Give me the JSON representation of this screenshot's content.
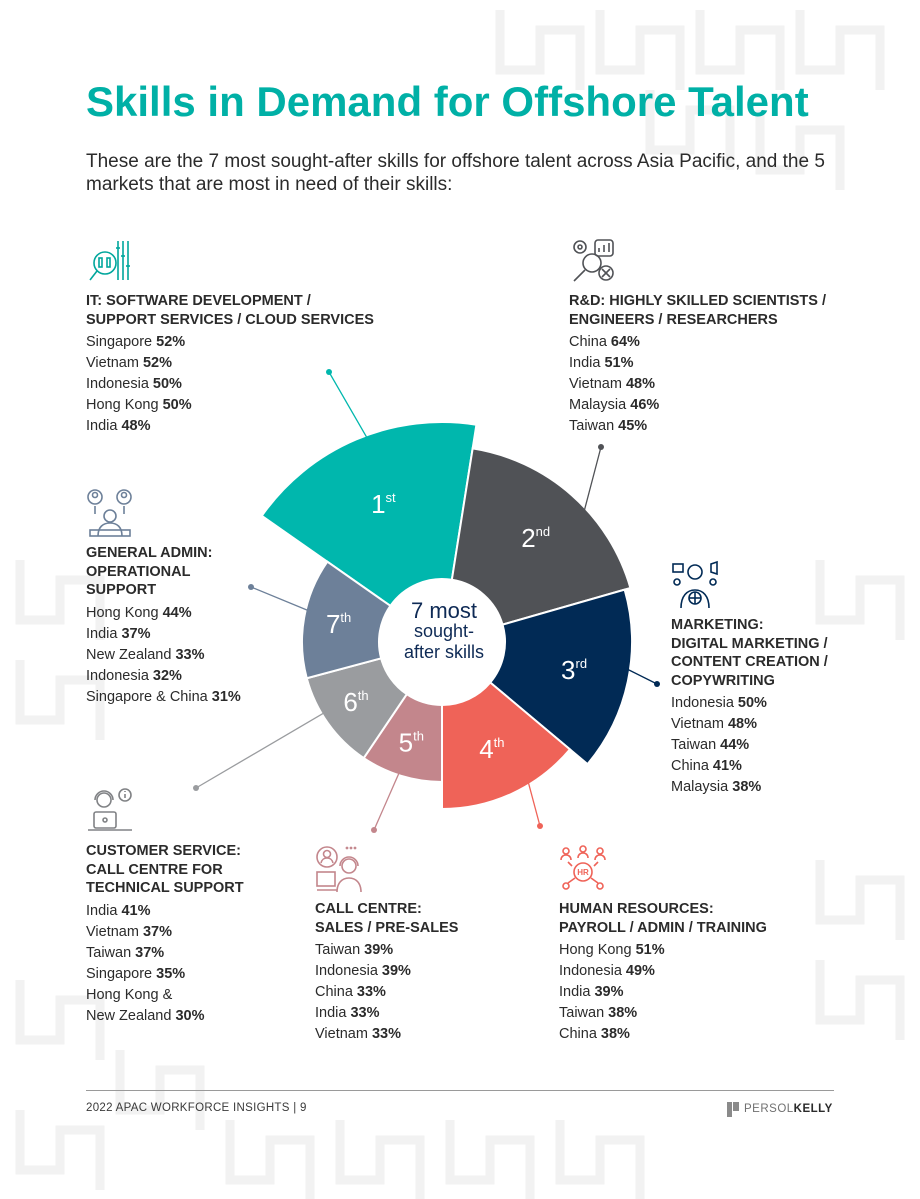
{
  "title": "Skills in Demand for Offshore Talent",
  "intro": "These are the 7 most sought-after skills for offshore talent across Asia Pacific, and the 5 markets that are most in need of their skills:",
  "center_label": {
    "line1": "7 most",
    "line2": "sought-",
    "line3": "after skills"
  },
  "segments": [
    {
      "rank": "1",
      "suffix": "st",
      "color": "#00b7ad"
    },
    {
      "rank": "2",
      "suffix": "nd",
      "color": "#505256"
    },
    {
      "rank": "3",
      "suffix": "rd",
      "color": "#012a55"
    },
    {
      "rank": "4",
      "suffix": "th",
      "color": "#ef6358"
    },
    {
      "rank": "5",
      "suffix": "th",
      "color": "#c3868c"
    },
    {
      "rank": "6",
      "suffix": "th",
      "color": "#9a9c9f"
    },
    {
      "rank": "7",
      "suffix": "th",
      "color": "#6d8099"
    }
  ],
  "skills": {
    "it": {
      "icon": "code-search-icon",
      "heading": [
        "IT: SOFTWARE DEVELOPMENT /",
        "SUPPORT SERVICES / CLOUD SERVICES"
      ],
      "markets": [
        {
          "name": "Singapore",
          "pct": "52%"
        },
        {
          "name": "Vietnam",
          "pct": "52%"
        },
        {
          "name": "Indonesia",
          "pct": "50%"
        },
        {
          "name": "Hong Kong",
          "pct": "50%"
        },
        {
          "name": "India",
          "pct": "48%"
        }
      ]
    },
    "rnd": {
      "icon": "research-gears-icon",
      "heading": [
        "R&D: HIGHLY SKILLED SCIENTISTS /",
        "ENGINEERS / RESEARCHERS"
      ],
      "markets": [
        {
          "name": "China",
          "pct": "64%"
        },
        {
          "name": "India",
          "pct": "51%"
        },
        {
          "name": "Vietnam",
          "pct": "48%"
        },
        {
          "name": "Malaysia",
          "pct": "46%"
        },
        {
          "name": "Taiwan",
          "pct": "45%"
        }
      ]
    },
    "marketing": {
      "icon": "digital-marketing-icon",
      "heading": [
        "MARKETING:",
        "DIGITAL MARKETING /",
        "CONTENT CREATION /",
        "COPYWRITING"
      ],
      "markets": [
        {
          "name": "Indonesia",
          "pct": "50%"
        },
        {
          "name": "Vietnam",
          "pct": "48%"
        },
        {
          "name": "Taiwan",
          "pct": "44%"
        },
        {
          "name": "China",
          "pct": "41%"
        },
        {
          "name": "Malaysia",
          "pct": "38%"
        }
      ]
    },
    "hr": {
      "icon": "hr-network-icon",
      "heading": [
        "HUMAN RESOURCES:",
        "PAYROLL / ADMIN / TRAINING"
      ],
      "markets": [
        {
          "name": "Hong Kong",
          "pct": "51%"
        },
        {
          "name": "Indonesia",
          "pct": "49%"
        },
        {
          "name": "India",
          "pct": "39%"
        },
        {
          "name": "Taiwan",
          "pct": "38%"
        },
        {
          "name": "China",
          "pct": "38%"
        }
      ]
    },
    "callcentre": {
      "icon": "call-centre-agent-icon",
      "heading": [
        "CALL CENTRE:",
        "SALES / PRE-SALES"
      ],
      "markets": [
        {
          "name": "Taiwan",
          "pct": "39%"
        },
        {
          "name": "Indonesia",
          "pct": "39%"
        },
        {
          "name": "China",
          "pct": "33%"
        },
        {
          "name": "India",
          "pct": "33%"
        },
        {
          "name": "Vietnam",
          "pct": "33%"
        }
      ]
    },
    "customer": {
      "icon": "customer-service-icon",
      "heading": [
        "CUSTOMER SERVICE:",
        "CALL CENTRE FOR",
        "TECHNICAL SUPPORT"
      ],
      "markets": [
        {
          "name": "India",
          "pct": "41%"
        },
        {
          "name": "Vietnam",
          "pct": "37%"
        },
        {
          "name": "Taiwan",
          "pct": "37%"
        },
        {
          "name": "Singapore",
          "pct": "35%"
        },
        {
          "name": "Hong Kong &",
          "pct": ""
        },
        {
          "name": "New Zealand",
          "pct": "30%"
        }
      ]
    },
    "admin": {
      "icon": "admin-team-icon",
      "heading": [
        "GENERAL ADMIN:",
        "OPERATIONAL",
        "SUPPORT"
      ],
      "markets": [
        {
          "name": "Hong Kong",
          "pct": "44%"
        },
        {
          "name": "India",
          "pct": "37%"
        },
        {
          "name": "New Zealand",
          "pct": "33%"
        },
        {
          "name": "Indonesia",
          "pct": "32%"
        },
        {
          "name": "Singapore & China",
          "pct": "31%"
        }
      ]
    }
  },
  "footer": {
    "text": "2022 APAC WORKFORCE INSIGHTS  |  9",
    "brand_light": "PERSOL",
    "brand_bold": "KELLY"
  }
}
